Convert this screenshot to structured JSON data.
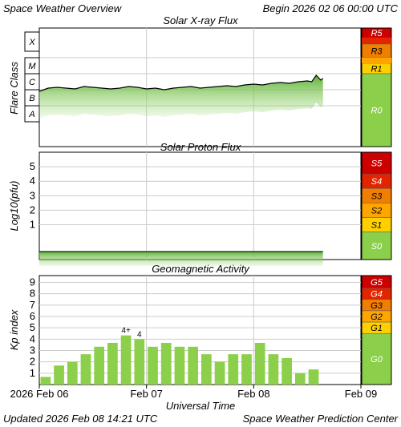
{
  "header": {
    "title": "Space Weather Overview",
    "begin": "Begin 2026 02 06 00:00 UTC"
  },
  "footer": {
    "updated": "Updated 2026 Feb 08 14:21 UTC",
    "source": "Space Weather Prediction Center"
  },
  "xaxis": {
    "label": "Universal Time",
    "ticks": [
      "2026 Feb 06",
      "Feb 07",
      "Feb 08",
      "Feb 09"
    ]
  },
  "colors": {
    "r5": "#cc0000",
    "r4": "#e32400",
    "r3": "#f07e00",
    "r2": "#ffa500",
    "r1": "#ffd000",
    "r0": "#8ccf4a",
    "bar": "#8ccf4a",
    "grid": "#cccccc",
    "trace": "#000000"
  },
  "chart_data": [
    {
      "type": "area",
      "title": "Solar X-ray Flux",
      "ylabel": "Flare Class",
      "y_scale": "log",
      "classes": [
        "X",
        "M",
        "C",
        "B",
        "A"
      ],
      "scale_labels": [
        "R5",
        "R3",
        "R1",
        "R0"
      ],
      "x_start": "2026-02-06T00:00Z",
      "x_end": "2026-02-09T00:00Z",
      "series": [
        {
          "class_level": [
            1.9,
            2.1,
            2.15,
            2.1,
            2.05,
            2.2,
            2.15,
            2.1,
            2.05,
            2.1,
            2.2,
            2.15,
            2.05,
            2.1,
            2.0,
            2.1,
            2.15,
            2.2,
            2.1,
            2.15,
            2.2,
            2.25,
            2.2,
            2.3,
            2.35,
            2.3,
            2.4,
            2.45,
            2.4,
            2.5,
            2.55,
            2.5,
            2.9,
            2.6,
            2.7
          ],
          "time_hours": [
            0,
            2,
            4,
            6,
            8,
            10,
            12,
            14,
            16,
            18,
            20,
            22,
            24,
            26,
            28,
            30,
            32,
            34,
            36,
            38,
            40,
            42,
            44,
            46,
            48,
            50,
            52,
            54,
            56,
            58,
            60,
            61,
            62,
            63,
            63.5
          ]
        }
      ]
    },
    {
      "type": "area",
      "title": "Solar Proton Flux",
      "ylabel": "Log10(pfu)",
      "yticks": [
        1,
        2,
        3,
        4,
        5
      ],
      "scale_labels": [
        "S5",
        "S4",
        "S3",
        "S2",
        "S1",
        "S0"
      ],
      "ylim": [
        -1.4,
        6
      ],
      "series": [
        {
          "time_hours": [
            0,
            63.5
          ],
          "log10_pfu": [
            -0.85,
            -0.85
          ]
        }
      ]
    },
    {
      "type": "bar",
      "title": "Geomagnetic Activity",
      "ylabel": "Kp index",
      "yticks": [
        1,
        2,
        3,
        4,
        5,
        6,
        7,
        8,
        9
      ],
      "ylim": [
        0,
        9.6
      ],
      "scale_labels": [
        "G5",
        "G4",
        "G3",
        "G2",
        "G1",
        "G0"
      ],
      "time_hours": [
        0,
        3,
        6,
        9,
        12,
        15,
        18,
        21,
        24,
        27,
        30,
        33,
        36,
        39,
        42,
        45,
        48,
        51,
        54,
        57,
        60
      ],
      "values": [
        0.67,
        1.67,
        2.0,
        2.67,
        3.33,
        3.67,
        4.33,
        4.0,
        3.33,
        3.67,
        3.33,
        3.33,
        2.67,
        2.0,
        2.67,
        2.67,
        3.67,
        2.67,
        2.33,
        1.0,
        1.33
      ],
      "annotations": [
        "",
        "",
        "",
        "",
        "",
        "",
        "4+",
        "4",
        "",
        "",
        "",
        "",
        "",
        "",
        "",
        "",
        "",
        "",
        "",
        "",
        ""
      ]
    }
  ]
}
